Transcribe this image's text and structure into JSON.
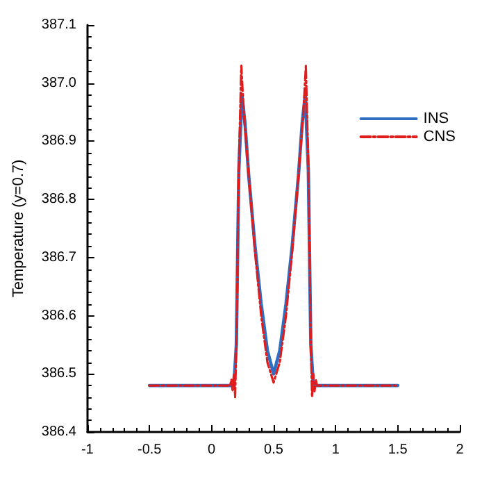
{
  "chart_data": {
    "type": "line",
    "ylabel": "Temperature (y=0.7)",
    "xlim": [
      -1,
      2
    ],
    "xticks": [
      -1,
      -0.5,
      0,
      0.5,
      1,
      1.5,
      2
    ],
    "ylim": [
      386.4,
      387.1
    ],
    "yticks": [
      386.4,
      386.5,
      386.6,
      386.7,
      386.8,
      386.9,
      {
        "value": 387,
        "label": "387.0"
      },
      387.1
    ],
    "grid": false,
    "legend": "top right",
    "marker": "none",
    "series": [
      {
        "name": "INS",
        "color": "#2e6fc4",
        "line_style": "solid",
        "x": [
          -0.5,
          0.18,
          0.2,
          0.22,
          0.245,
          0.27,
          0.3,
          0.35,
          0.4,
          0.45,
          0.5,
          0.55,
          0.6,
          0.65,
          0.7,
          0.73,
          0.755,
          0.78,
          0.8,
          0.82,
          1.5
        ],
        "values": [
          386.48,
          386.48,
          386.55,
          386.85,
          386.98,
          386.93,
          386.84,
          386.72,
          386.62,
          386.54,
          386.5,
          386.54,
          386.62,
          386.72,
          386.84,
          386.93,
          386.98,
          386.85,
          386.55,
          386.48,
          386.48
        ]
      },
      {
        "name": "CNS",
        "color": "#e01c1c",
        "line_style": "dashed",
        "x": [
          -0.5,
          0.15,
          0.16,
          0.17,
          0.18,
          0.19,
          0.2,
          0.22,
          0.24,
          0.26,
          0.3,
          0.35,
          0.4,
          0.45,
          0.5,
          0.55,
          0.6,
          0.65,
          0.7,
          0.74,
          0.76,
          0.78,
          0.8,
          0.81,
          0.82,
          0.83,
          0.84,
          0.85,
          1.5
        ],
        "values": [
          386.48,
          386.48,
          386.49,
          386.47,
          386.5,
          386.46,
          386.55,
          386.86,
          387.03,
          386.95,
          386.84,
          386.71,
          386.6,
          386.52,
          386.485,
          386.52,
          386.6,
          386.71,
          386.84,
          386.95,
          387.03,
          386.86,
          386.55,
          386.46,
          386.5,
          386.47,
          386.49,
          386.48,
          386.48
        ]
      }
    ]
  }
}
